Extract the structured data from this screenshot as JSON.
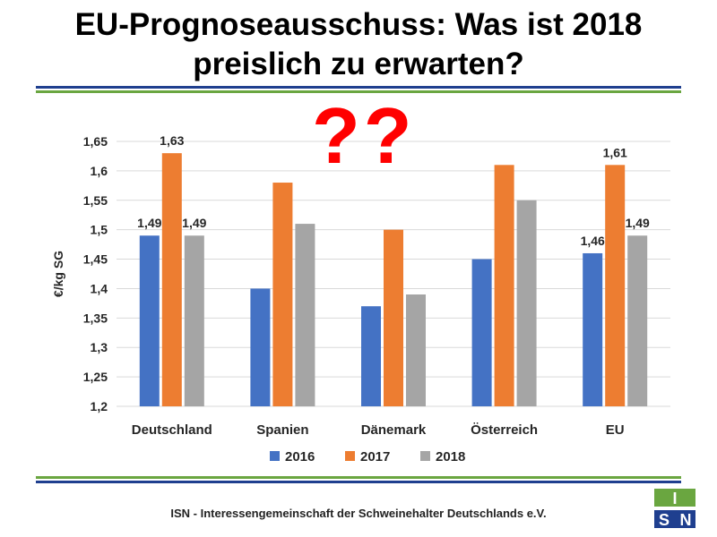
{
  "slide": {
    "title_line1": "EU-Prognoseausschuss: Was ist 2018",
    "title_line2": "preislich zu erwarten?",
    "question_marks": "??",
    "footer": "ISN - Interessengemeinschaft der Schweinehalter Deutschlands e.V.",
    "logo_text": "ISN",
    "colors": {
      "rule_blue": "#1f3f8f",
      "rule_green": "#6aa640",
      "question_red": "#ff0000"
    }
  },
  "chart_data": {
    "type": "bar",
    "categories": [
      "Deutschland",
      "Spanien",
      "Dänemark",
      "Österreich",
      "EU"
    ],
    "series": [
      {
        "name": "2016",
        "color": "#4472c4",
        "values": [
          1.49,
          1.4,
          1.37,
          1.45,
          1.46
        ]
      },
      {
        "name": "2017",
        "color": "#ed7d31",
        "values": [
          1.63,
          1.58,
          1.5,
          1.61,
          1.61
        ]
      },
      {
        "name": "2018",
        "color": "#a5a5a5",
        "values": [
          1.49,
          1.51,
          1.39,
          1.55,
          1.49
        ]
      }
    ],
    "data_labels": [
      {
        "category": 0,
        "series": 0,
        "text": "1,49"
      },
      {
        "category": 0,
        "series": 1,
        "text": "1,63"
      },
      {
        "category": 0,
        "series": 2,
        "text": "1,49"
      },
      {
        "category": 4,
        "series": 0,
        "text": "1,46"
      },
      {
        "category": 4,
        "series": 1,
        "text": "1,61"
      },
      {
        "category": 4,
        "series": 2,
        "text": "1,49"
      }
    ],
    "ylabel": "€/kg SG",
    "ylim": [
      1.2,
      1.65
    ],
    "yticks": [
      1.2,
      1.25,
      1.3,
      1.35,
      1.4,
      1.45,
      1.5,
      1.55,
      1.6,
      1.65
    ],
    "ytick_labels": [
      "1,2",
      "1,25",
      "1,3",
      "1,35",
      "1,4",
      "1,45",
      "1,5",
      "1,55",
      "1,6",
      "1,65"
    ],
    "grid": true,
    "legend_position": "bottom"
  }
}
